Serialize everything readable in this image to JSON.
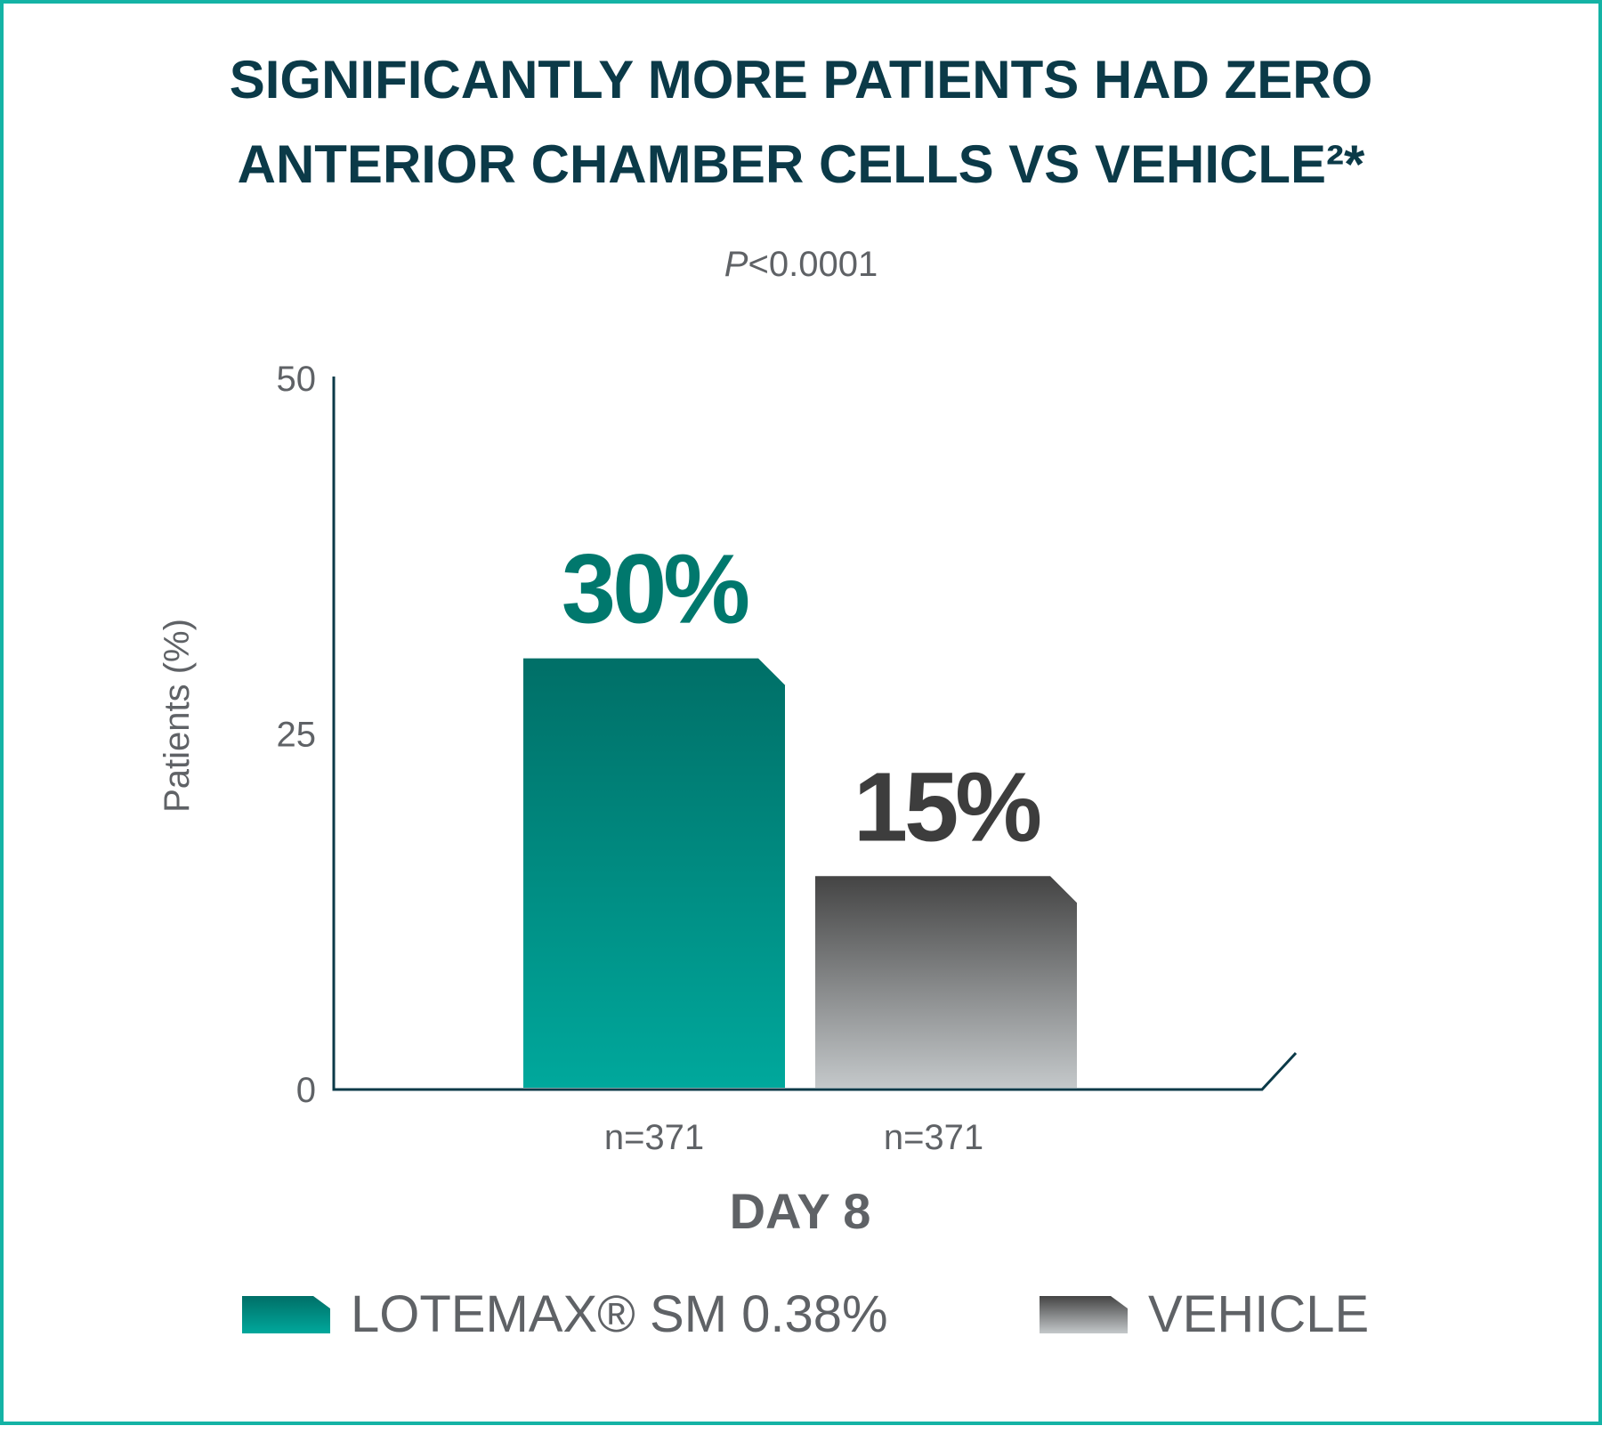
{
  "chart_data": {
    "type": "bar",
    "title": [
      "SIGNIFICANTLY MORE PATIENTS HAD ZERO",
      "ANTERIOR CHAMBER CELLS VS VEHICLE²*"
    ],
    "subtitle_italic": "P",
    "subtitle_rest": "<0.0001",
    "ylabel": "Patients (%)",
    "xlabel": "DAY 8",
    "ylim": [
      0,
      50
    ],
    "yticks": [
      "0",
      "25",
      "50"
    ],
    "series": [
      {
        "name": "LOTEMAX® SM 0.38%",
        "value": 30,
        "label": "30%",
        "n": "n=371",
        "color_top": "#006f67",
        "color_bottom": "#00a89c",
        "label_color": "#00786d"
      },
      {
        "name": "VEHICLE",
        "value": 15,
        "label": "15%",
        "n": "n=371",
        "color_top": "#444444",
        "color_bottom": "#c4c8ca",
        "label_color": "#3d3d3d"
      }
    ],
    "legend_placement": "bottom",
    "grid": false
  }
}
